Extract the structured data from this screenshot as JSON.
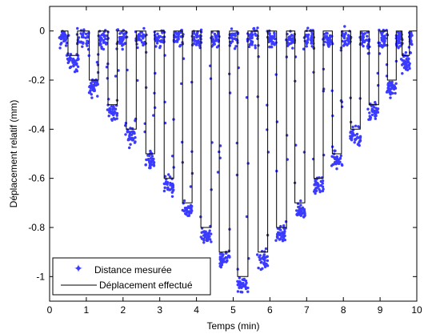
{
  "chart_data": {
    "type": "scatter",
    "xlabel": "Temps (min)",
    "ylabel": "Déplacement relatif (mm)",
    "xlim": [
      0,
      10
    ],
    "ylim": [
      -1.1,
      0.1
    ],
    "xticks": [
      "0",
      "1",
      "2",
      "3",
      "4",
      "5",
      "6",
      "7",
      "8",
      "9",
      "10"
    ],
    "yticks": [
      "0",
      "-0.2",
      "-0.4",
      "-0.6",
      "-0.8",
      "-1"
    ],
    "grid": false,
    "legend_position": "bottom-left",
    "colors": {
      "measured": "#3b3bff",
      "commanded": "#000000"
    },
    "steps": [
      {
        "t0": 0.5,
        "t1": 0.76,
        "value": -0.1
      },
      {
        "t0": 1.08,
        "t1": 1.33,
        "value": -0.2
      },
      {
        "t0": 1.59,
        "t1": 1.84,
        "value": -0.3
      },
      {
        "t0": 2.09,
        "t1": 2.36,
        "value": -0.4
      },
      {
        "t0": 2.62,
        "t1": 2.86,
        "value": -0.5
      },
      {
        "t0": 3.12,
        "t1": 3.38,
        "value": -0.6
      },
      {
        "t0": 3.62,
        "t1": 3.88,
        "value": -0.7
      },
      {
        "t0": 4.12,
        "t1": 4.4,
        "value": -0.8
      },
      {
        "t0": 4.62,
        "t1": 4.9,
        "value": -0.9
      },
      {
        "t0": 5.12,
        "t1": 5.4,
        "value": -1.0
      },
      {
        "t0": 5.68,
        "t1": 5.94,
        "value": -0.9
      },
      {
        "t0": 6.18,
        "t1": 6.45,
        "value": -0.8
      },
      {
        "t0": 6.68,
        "t1": 6.95,
        "value": -0.7
      },
      {
        "t0": 7.2,
        "t1": 7.45,
        "value": -0.6
      },
      {
        "t0": 7.7,
        "t1": 7.95,
        "value": -0.5
      },
      {
        "t0": 8.2,
        "t1": 8.46,
        "value": -0.4
      },
      {
        "t0": 8.7,
        "t1": 8.96,
        "value": -0.3
      },
      {
        "t0": 9.2,
        "t1": 9.44,
        "value": -0.2
      },
      {
        "t0": 9.6,
        "t1": 9.8,
        "value": -0.1
      }
    ],
    "measured_offset": -0.03,
    "series": [
      {
        "name": "Distance mesurée",
        "marker": "dot"
      },
      {
        "name": "Déplacement effectué",
        "marker": "line"
      }
    ]
  }
}
